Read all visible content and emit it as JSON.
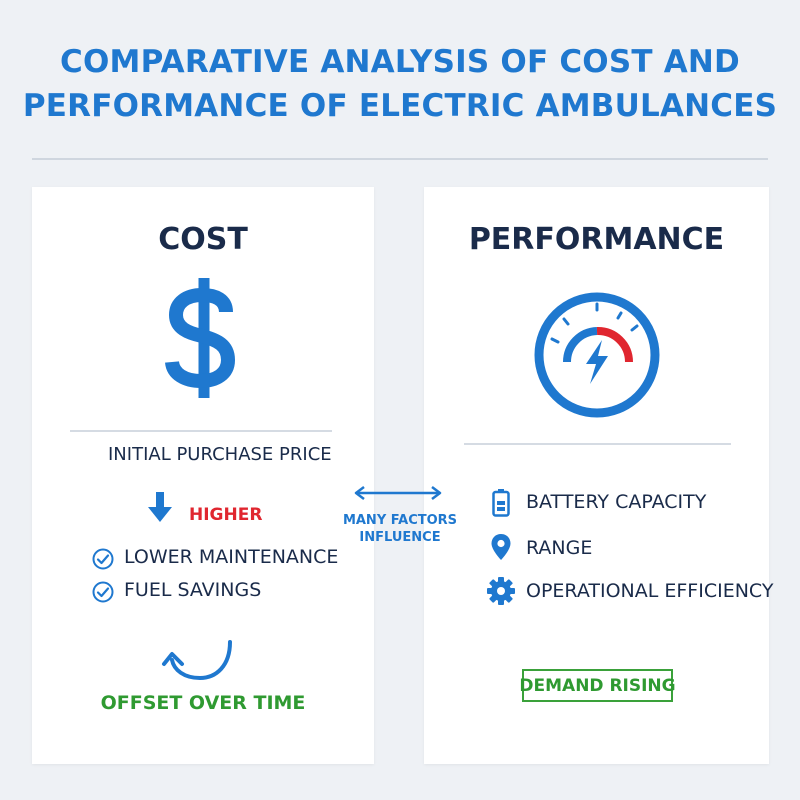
{
  "title": {
    "line1": "COMPARATIVE ANALYSIS OF COST AND",
    "line2": "PERFORMANCE OF ELECTRIC AMBULANCES"
  },
  "cost": {
    "heading": "COST",
    "icon": "dollar-sign-icon",
    "initial_price_label": "INITIAL PURCHASE PRICE",
    "price_direction": "HIGHER",
    "benefits": [
      "LOWER MAINTENANCE",
      "FUEL SAVINGS"
    ],
    "offset_label": "OFFSET OVER TIME"
  },
  "connector": {
    "line1": "MANY FACTORS",
    "line2": "INFLUENCE"
  },
  "performance": {
    "heading": "PERFORMANCE",
    "icon": "gauge-bolt-icon",
    "factors": [
      {
        "icon": "battery-icon",
        "label": "BATTERY CAPACITY"
      },
      {
        "icon": "location-pin-icon",
        "label": "RANGE"
      },
      {
        "icon": "gear-icon",
        "label": "OPERATIONAL EFFICIENCY"
      }
    ],
    "status_badge": "DEMAND RISING"
  },
  "colors": {
    "primary_blue": "#1f78cf",
    "dark_text": "#1a2b4a",
    "red": "#e0262f",
    "green": "#2f9a31"
  }
}
